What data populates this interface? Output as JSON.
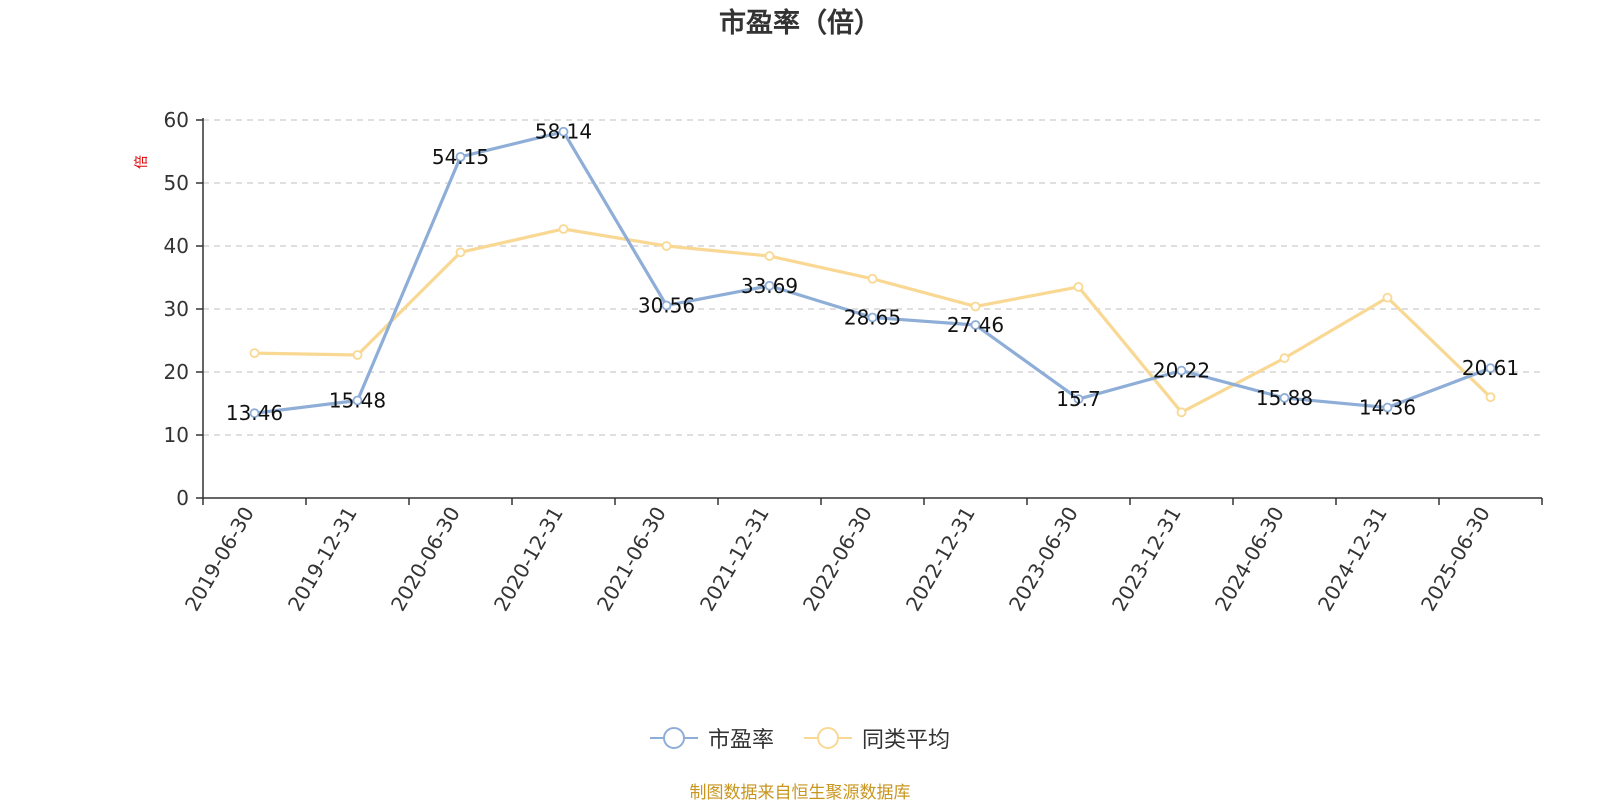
{
  "title": "市盈率（倍）",
  "source_note": "制图数据来自恒生聚源数据库",
  "legend": {
    "series1_label": "市盈率",
    "series2_label": "同类平均"
  },
  "colors": {
    "series1": "#8eaed8",
    "series2": "#f9d894",
    "grid": "#cccccc",
    "axis": "#333333",
    "unit": "#e00000",
    "source": "#c8961e"
  },
  "chart_data": {
    "type": "line",
    "title": "市盈率（倍）",
    "ylabel": "倍",
    "xlabel": "",
    "ylim": [
      0,
      60
    ],
    "yticks": [
      0,
      10,
      20,
      30,
      40,
      50,
      60
    ],
    "grid": true,
    "legend_position": "bottom",
    "categories": [
      "2019-06-30",
      "2019-12-31",
      "2020-06-30",
      "2020-12-31",
      "2021-06-30",
      "2021-12-31",
      "2022-06-30",
      "2022-12-31",
      "2023-06-30",
      "2023-12-31",
      "2024-06-30",
      "2024-12-31",
      "2025-06-30"
    ],
    "series": [
      {
        "name": "市盈率",
        "values": [
          13.46,
          15.48,
          54.15,
          58.14,
          30.56,
          33.69,
          28.65,
          27.46,
          15.7,
          20.22,
          15.88,
          14.36,
          20.61
        ],
        "labels": [
          "13.46",
          "15.48",
          "54.15",
          "58.14",
          "30.56",
          "33.69",
          "28.65",
          "27.46",
          "15.7",
          "20.22",
          "15.88",
          "14.36",
          "20.61"
        ]
      },
      {
        "name": "同类平均",
        "values": [
          23.0,
          22.7,
          39.0,
          42.7,
          40.0,
          38.4,
          34.8,
          30.4,
          33.5,
          13.6,
          22.2,
          31.8,
          16.0
        ]
      }
    ]
  }
}
